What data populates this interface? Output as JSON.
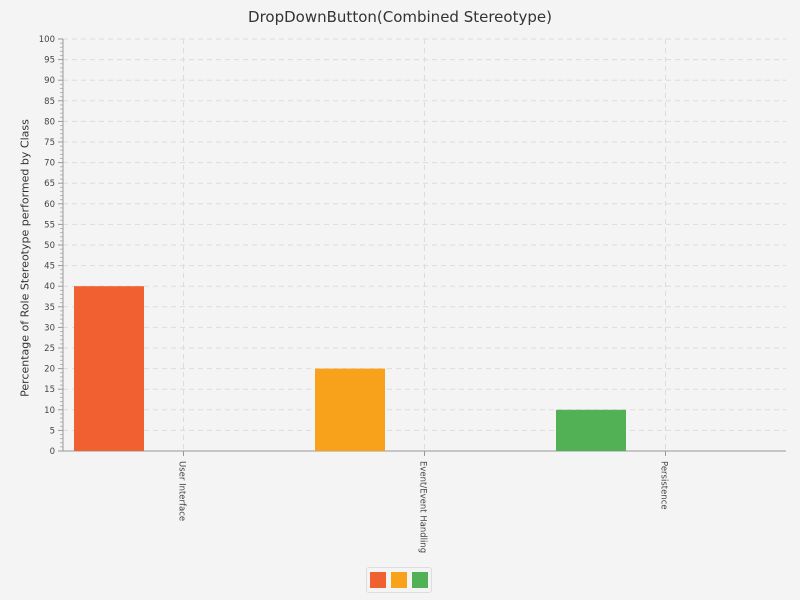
{
  "chart_data": {
    "type": "bar",
    "title": "DropDownButton(Combined Stereotype)",
    "xlabel": "",
    "ylabel": "Percentage of Role Stereotype performed by Class",
    "categories": [
      "User Interface",
      "Event/Event Handling",
      "Persistence"
    ],
    "values": [
      40,
      20,
      10
    ],
    "colors": [
      "#f06030",
      "#f8a21c",
      "#52b055"
    ],
    "ylim": [
      0,
      100
    ],
    "y_ticks": [
      "0",
      "5",
      "10",
      "15",
      "20",
      "25",
      "30",
      "35",
      "40",
      "45",
      "50",
      "55",
      "60",
      "65",
      "70",
      "75",
      "80",
      "85",
      "90",
      "95",
      "100"
    ],
    "grid": true,
    "legend": {
      "placement": "bottom-center",
      "swatch_colors": [
        "#f06030",
        "#f8a21c",
        "#52b055"
      ]
    }
  }
}
